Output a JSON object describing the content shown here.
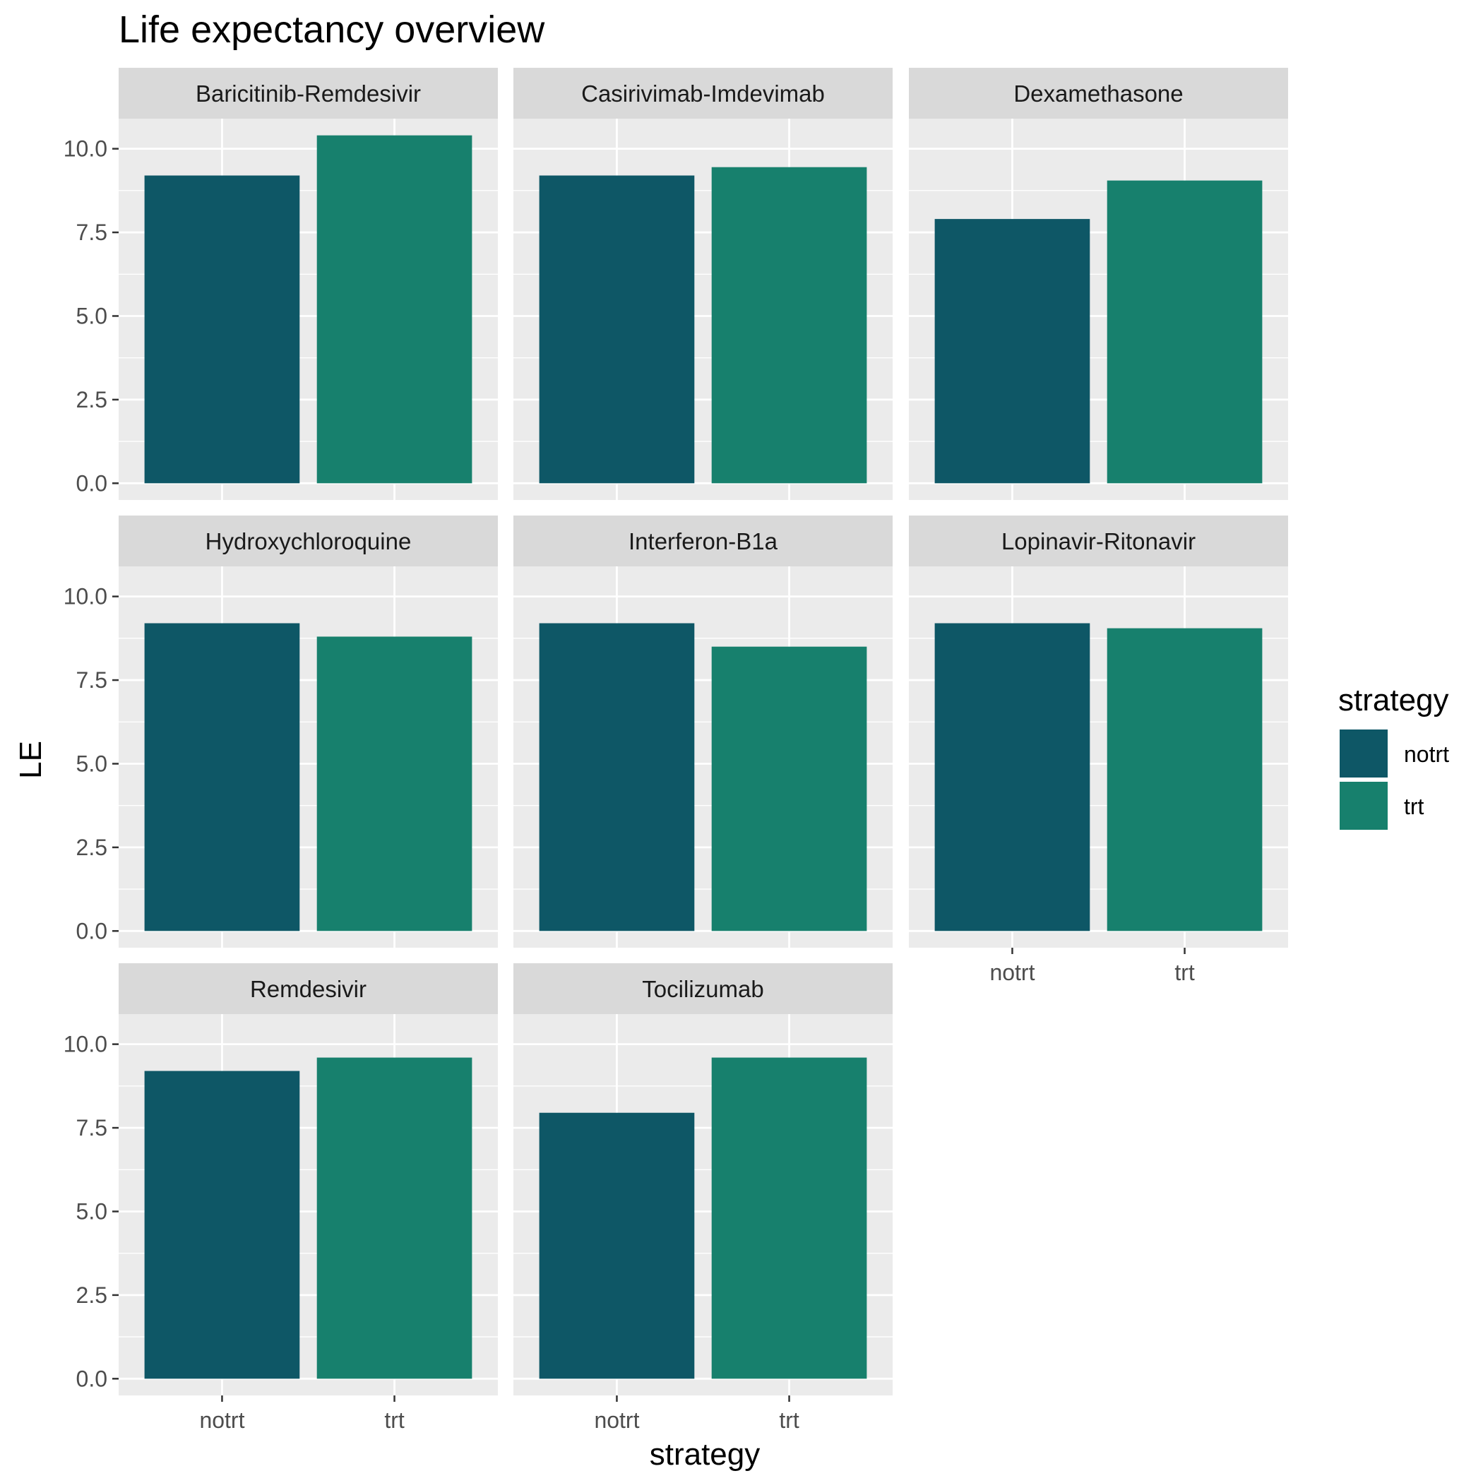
{
  "chart_data": {
    "type": "bar",
    "title": "Life expectancy overview",
    "xlabel": "strategy",
    "ylabel": "LE",
    "ylim": [
      0,
      10.4
    ],
    "y_ticks": [
      "0.0",
      "2.5",
      "5.0",
      "7.5",
      "10.0"
    ],
    "y_tick_values": [
      0,
      2.5,
      5,
      7.5,
      10
    ],
    "categories": [
      "notrt",
      "trt"
    ],
    "legend": {
      "title": "strategy",
      "position": "right",
      "entries": [
        {
          "label": "notrt",
          "color": "#0e5766"
        },
        {
          "label": "trt",
          "color": "#17806d"
        }
      ]
    },
    "grid": true,
    "facets": [
      {
        "name": "Baricitinib-Remdesivir",
        "values": [
          9.2,
          10.4
        ]
      },
      {
        "name": "Casirivimab-Imdevimab",
        "values": [
          9.2,
          9.45
        ]
      },
      {
        "name": "Dexamethasone",
        "values": [
          7.9,
          9.05
        ]
      },
      {
        "name": "Hydroxychloroquine",
        "values": [
          9.2,
          8.8
        ]
      },
      {
        "name": "Interferon-B1a",
        "values": [
          9.2,
          8.5
        ]
      },
      {
        "name": "Lopinavir-Ritonavir",
        "values": [
          9.2,
          9.05
        ]
      },
      {
        "name": "Remdesivir",
        "values": [
          9.2,
          9.6
        ]
      },
      {
        "name": "Tocilizumab",
        "values": [
          7.95,
          9.6
        ]
      }
    ]
  }
}
